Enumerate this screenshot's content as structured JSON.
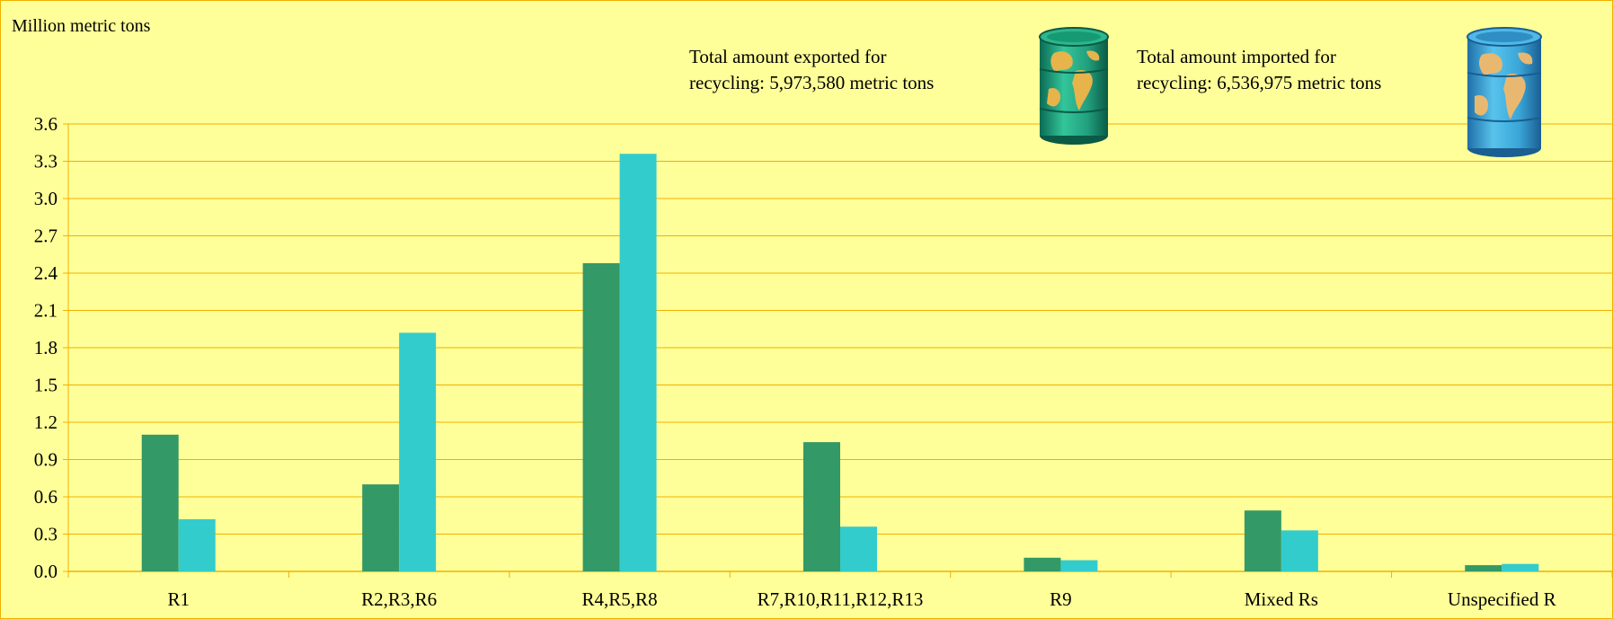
{
  "chart_data": {
    "type": "bar",
    "ylabel": "Million metric tons",
    "categories": [
      "R1",
      "R2,R3,R6",
      "R4,R5,R8",
      "R7,R10,R11,R12,R13",
      "R9",
      "Mixed Rs",
      "Unspecified R"
    ],
    "series": [
      {
        "color": "#339966",
        "values": [
          1.1,
          0.7,
          2.48,
          1.04,
          0.11,
          0.49,
          0.05
        ]
      },
      {
        "color": "#33CCCC",
        "values": [
          0.42,
          1.92,
          3.36,
          0.36,
          0.09,
          0.33,
          0.06
        ]
      }
    ],
    "ylim": [
      0,
      3.6
    ],
    "yticks": [
      "0.0",
      "0.3",
      "0.6",
      "0.9",
      "1.2",
      "1.5",
      "1.8",
      "2.1",
      "2.4",
      "2.7",
      "3.0",
      "3.3",
      "3.6"
    ],
    "grid": true,
    "colors": {
      "background": "#FFFF99",
      "gridline": "#F0B000",
      "exported": "#339966",
      "imported": "#33CCCC"
    }
  },
  "annotations": {
    "exported": {
      "line1": "Total amount exported for",
      "line2": "recycling: 5,973,580 metric tons",
      "icon": "green-globe-barrel-icon"
    },
    "imported": {
      "line1": "Total amount imported for",
      "line2": "recycling:  6,536,975 metric tons",
      "icon": "blue-globe-barrel-icon"
    }
  }
}
